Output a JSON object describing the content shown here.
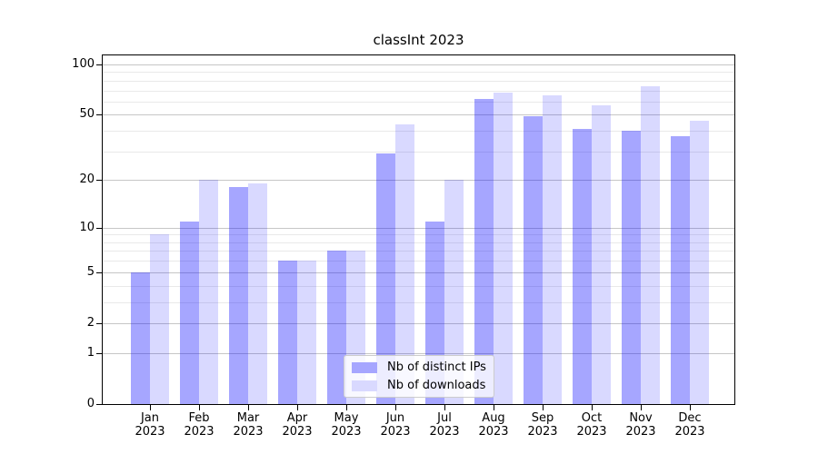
{
  "chart_data": {
    "type": "bar",
    "title": "classInt 2023",
    "xlabel": "",
    "ylabel": "",
    "yscale": "log1p",
    "ylim": [
      0,
      113
    ],
    "grid": true,
    "legend_position": "lower-center",
    "background_color": "#ffffff",
    "major_grid_color": "#c6c6c6",
    "minor_grid_color": "#e9e9e9",
    "yticks_major": [
      0,
      1,
      2,
      5,
      10,
      20,
      50,
      100
    ],
    "yticks_minor": [
      3,
      4,
      6,
      7,
      8,
      9,
      30,
      40,
      60,
      70,
      80,
      90
    ],
    "categories": [
      "Jan",
      "Feb",
      "Mar",
      "Apr",
      "May",
      "Jun",
      "Jul",
      "Aug",
      "Sep",
      "Oct",
      "Nov",
      "Dec"
    ],
    "year_label": "2023",
    "series": [
      {
        "name": "Nb of distinct IPs",
        "color": "#a6a6ff",
        "fill": "rgba(0,0,255,0.35)",
        "values": [
          5,
          11,
          18,
          6,
          7,
          29,
          11,
          62,
          49,
          41,
          40,
          37
        ]
      },
      {
        "name": "Nb of downloads",
        "color": "#d9d9ff",
        "fill": "rgba(0,0,255,0.15)",
        "values": [
          9,
          20,
          19,
          6,
          7,
          44,
          20,
          68,
          65,
          57,
          74,
          46
        ]
      }
    ]
  }
}
